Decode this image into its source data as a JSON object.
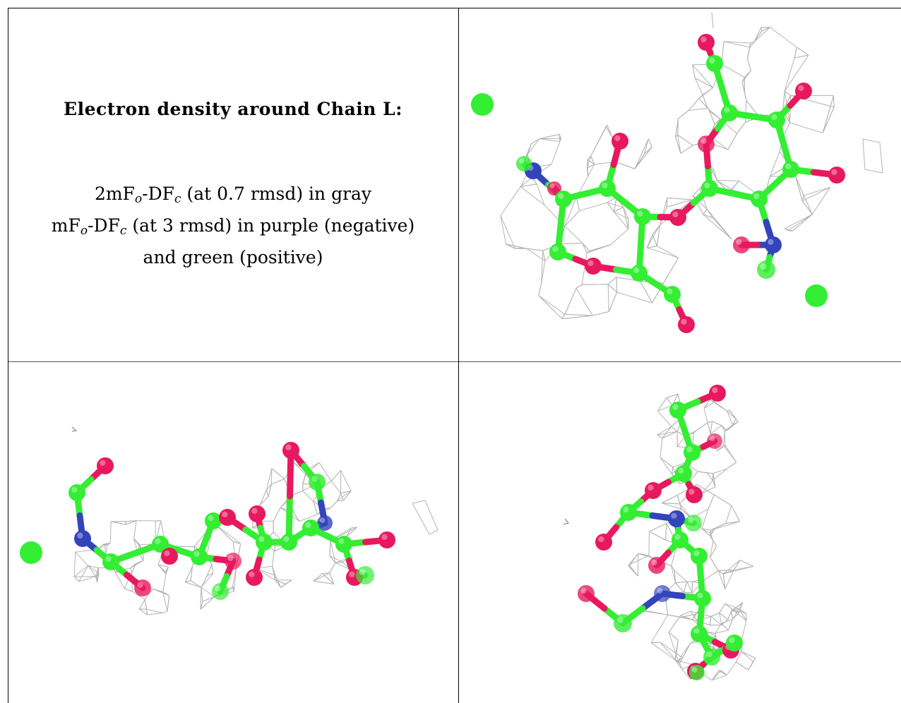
{
  "caption": {
    "title": "Electron density around Chain L:",
    "line1_prefix": "2mF",
    "line1_o": "o",
    "line1_mid": "-DF",
    "line1_c": "c",
    "line1_suffix": " (at 0.7 rmsd) in gray",
    "line2_prefix": "mF",
    "line2_o": "o",
    "line2_mid": "-DF",
    "line2_c": "c",
    "line2_suffix": " (at 3 rmsd) in purple (negative)",
    "line3": "and green (positive)"
  },
  "colors": {
    "carbon": "#33ee33",
    "oxygen": "#e8185f",
    "nitrogen": "#3344bb",
    "mesh": "#b4b4b4",
    "grid_line": "#000000"
  },
  "panels": [
    {
      "name": "view-top-right",
      "content": "molecular-model-with-density-mesh"
    },
    {
      "name": "view-bottom-left",
      "content": "molecular-model-with-density-mesh"
    },
    {
      "name": "view-bottom-right",
      "content": "molecular-model-with-density-mesh"
    }
  ]
}
